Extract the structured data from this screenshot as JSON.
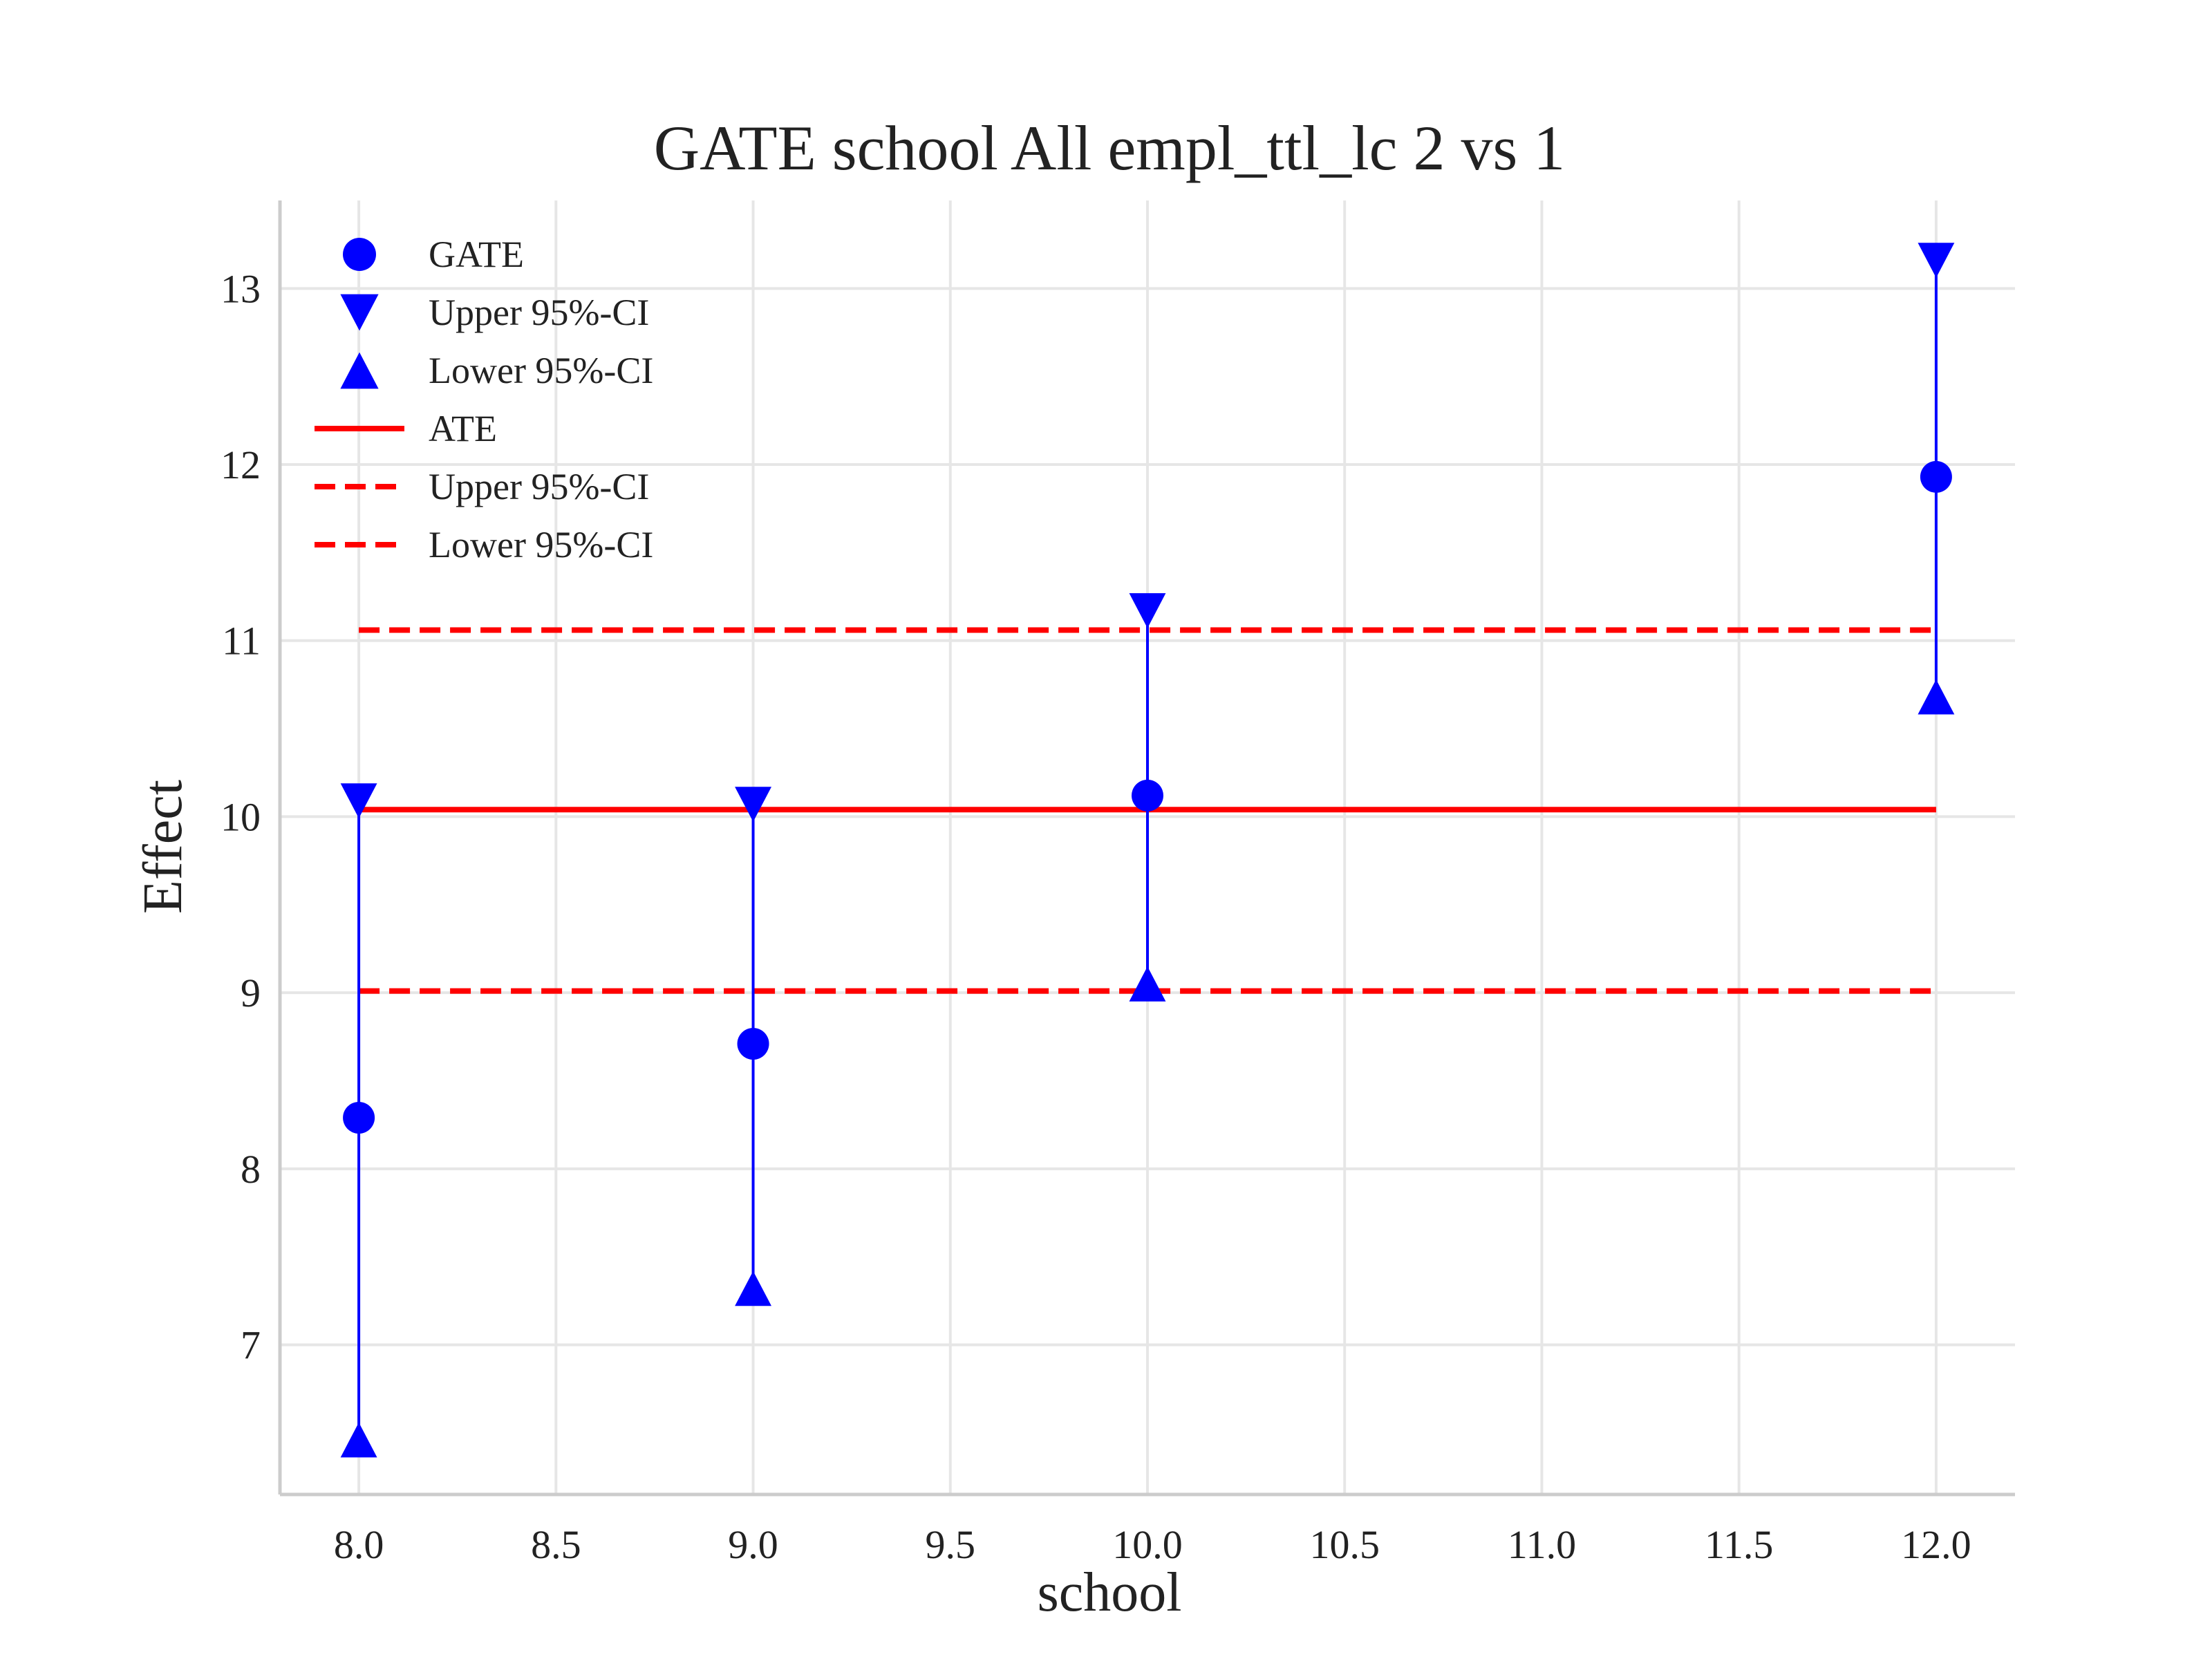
{
  "chart_data": {
    "type": "scatter",
    "title": "GATE school All empl_ttl_lc  2 vs 1",
    "xlabel": "school",
    "ylabel": "Effect",
    "xlim": [
      7.8,
      12.2
    ],
    "ylim": [
      6.15,
      13.5
    ],
    "xticks": [
      8.0,
      8.5,
      9.0,
      9.5,
      10.0,
      10.5,
      11.0,
      11.5,
      12.0
    ],
    "xtick_labels": [
      "8.0",
      "8.5",
      "9.0",
      "9.5",
      "10.0",
      "10.5",
      "11.0",
      "11.5",
      "12.0"
    ],
    "yticks": [
      7,
      8,
      9,
      10,
      11,
      12,
      13
    ],
    "ytick_labels": [
      "7",
      "8",
      "9",
      "10",
      "11",
      "12",
      "13"
    ],
    "grid": true,
    "legend_position": "top-left",
    "x": [
      8.0,
      9.0,
      10.0,
      12.0
    ],
    "series": [
      {
        "name": "GATE",
        "marker": "circle",
        "color": "#0000ff",
        "values": [
          8.29,
          8.71,
          10.12,
          11.93
        ]
      },
      {
        "name": "Upper 95%-CI",
        "marker": "triangle-down",
        "color": "#0000ff",
        "values": [
          10.09,
          10.07,
          11.17,
          13.16
        ]
      },
      {
        "name": "Lower 95%-CI",
        "marker": "triangle-up",
        "color": "#0000ff",
        "values": [
          6.46,
          7.32,
          9.05,
          10.68
        ]
      }
    ],
    "reference_lines": [
      {
        "name": "ATE",
        "style": "solid",
        "color": "#ff0000",
        "value": 10.04,
        "x_range": [
          8.0,
          12.0
        ]
      },
      {
        "name": "Upper 95%-CI",
        "style": "dashed",
        "color": "#ff0000",
        "value": 11.06,
        "x_range": [
          8.0,
          12.0
        ]
      },
      {
        "name": "Lower 95%-CI",
        "style": "dashed",
        "color": "#ff0000",
        "value": 9.01,
        "x_range": [
          8.0,
          12.0
        ]
      }
    ]
  }
}
